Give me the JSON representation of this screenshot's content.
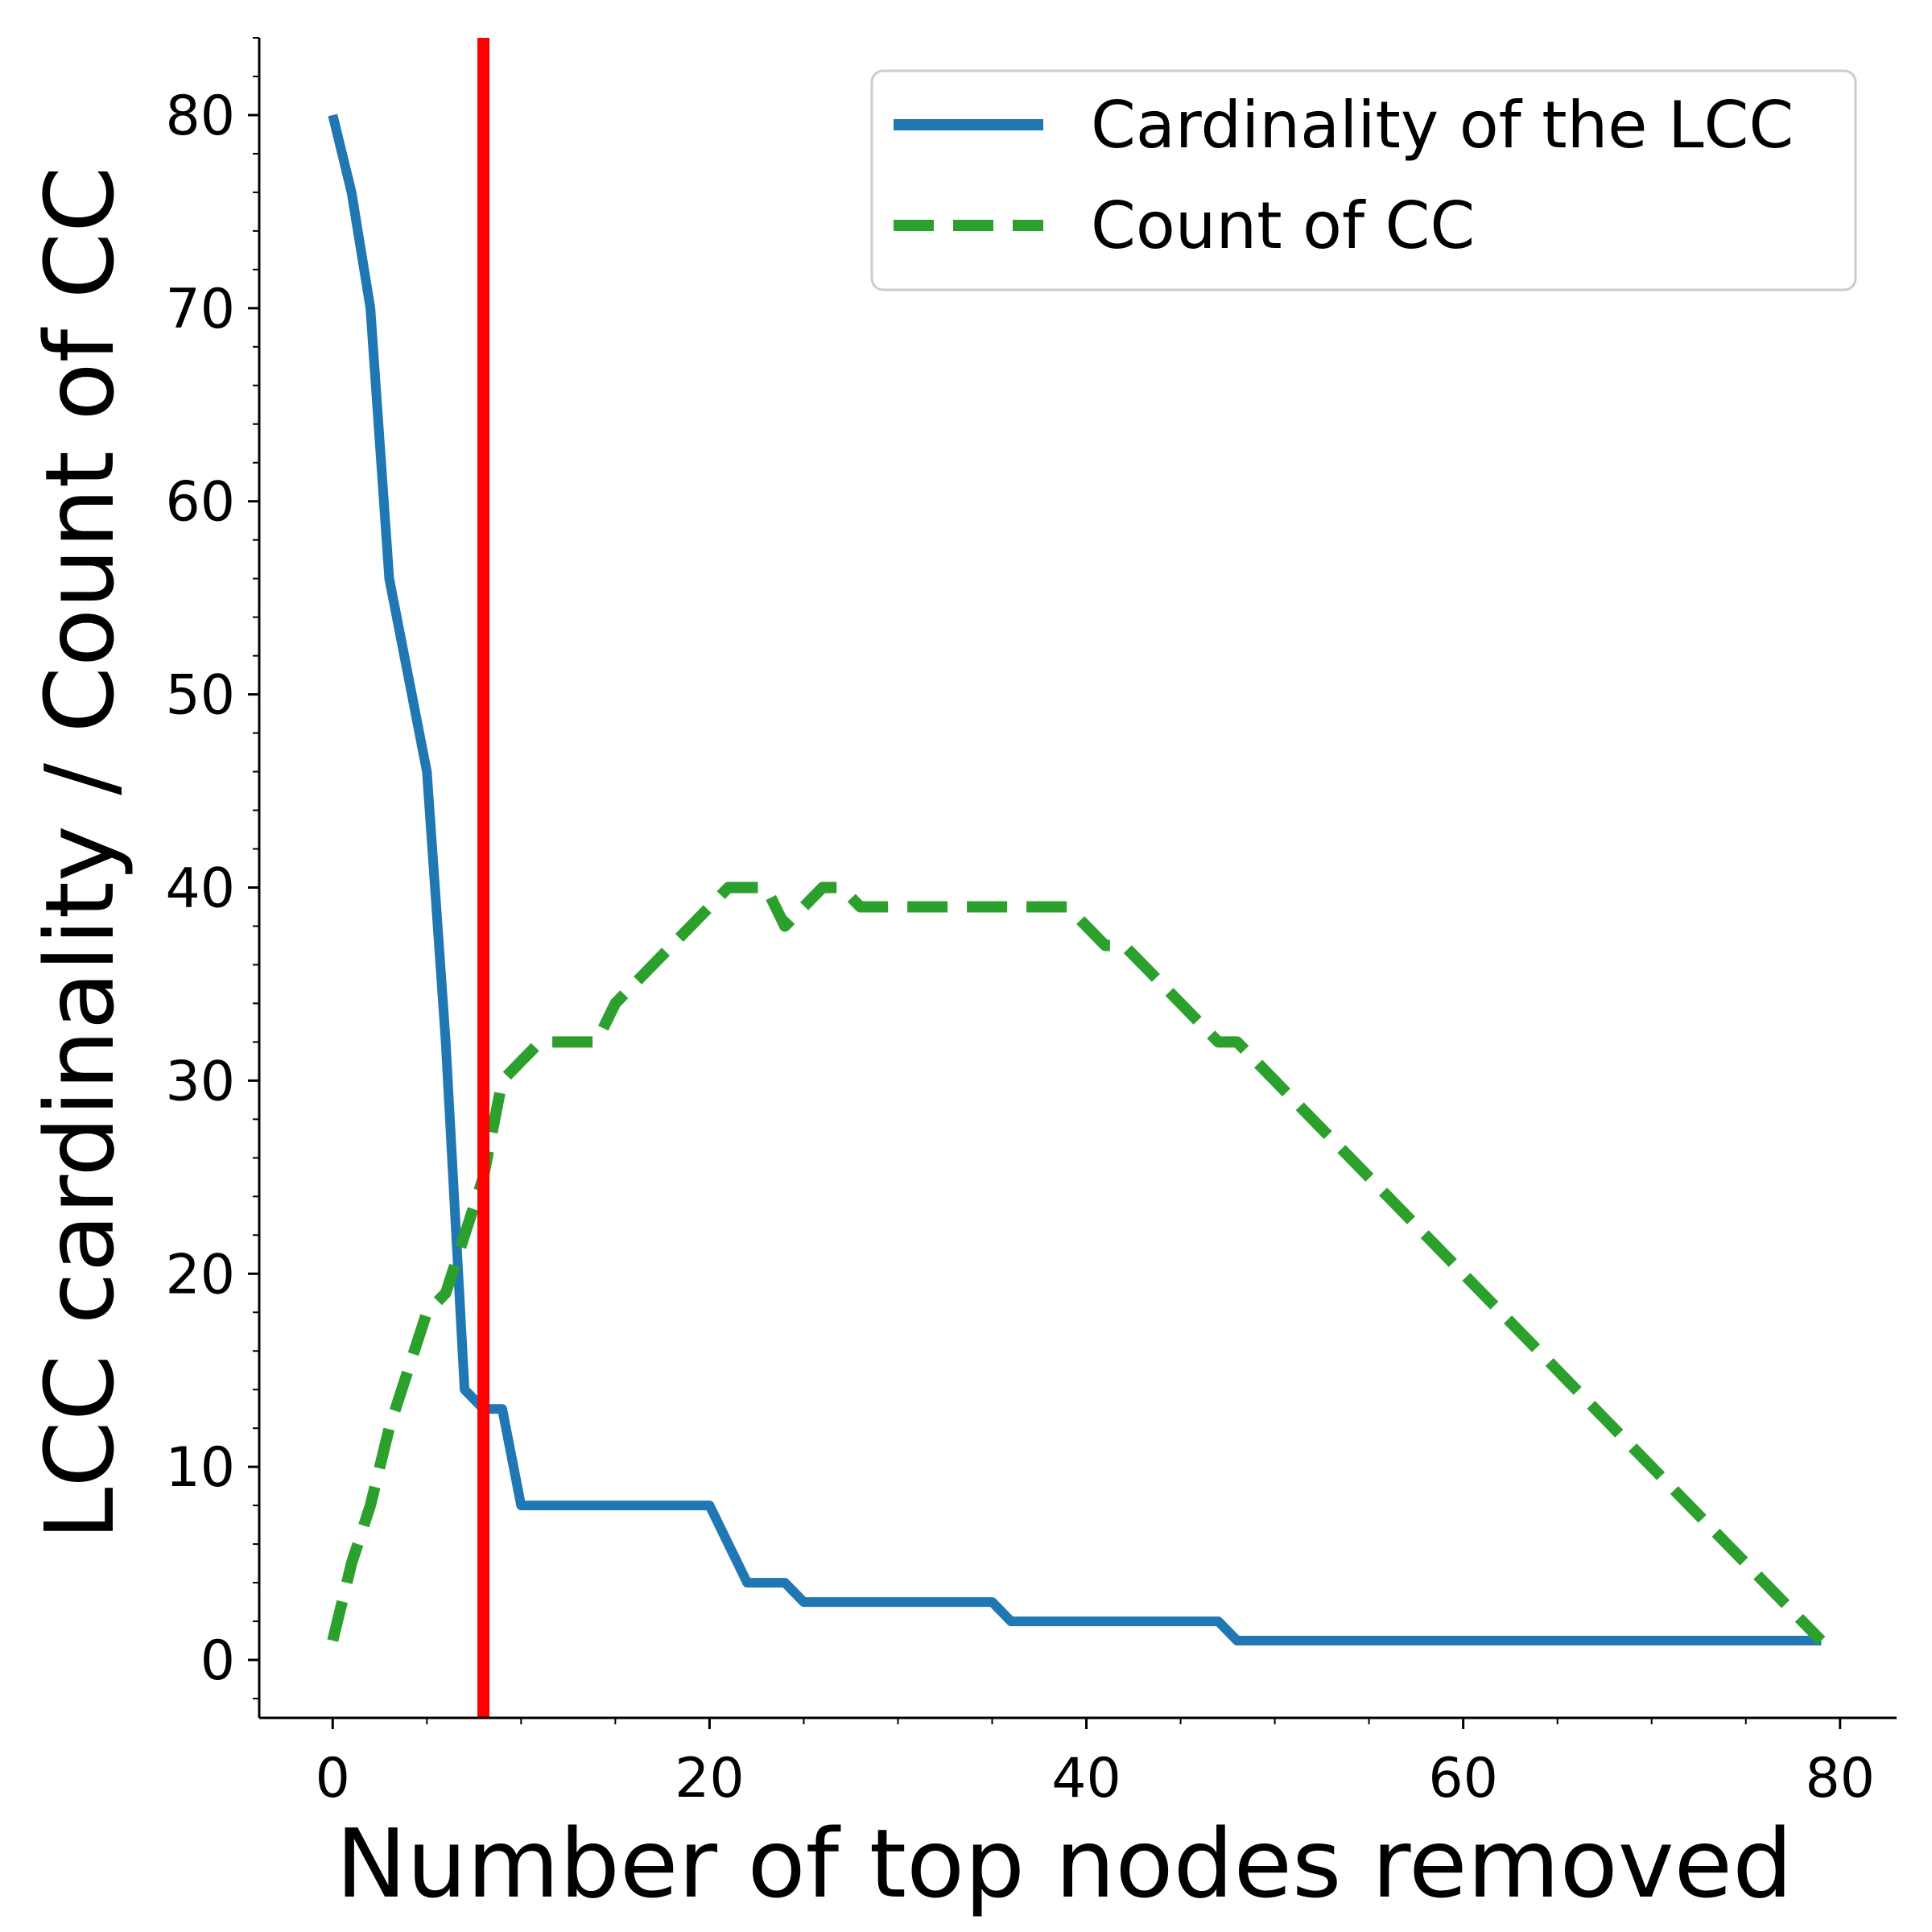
{
  "chart_data": {
    "type": "line",
    "title": "",
    "xlabel": "Number of top nodes removed",
    "ylabel": "LCC cardinality / Count of CC",
    "xlim": [
      -3.9,
      83.0
    ],
    "ylim": [
      -3.0,
      84.0
    ],
    "x_ticks": [
      "0",
      "20",
      "40",
      "60",
      "80"
    ],
    "y_ticks": [
      "0",
      "10",
      "20",
      "30",
      "40",
      "50",
      "60",
      "70",
      "80"
    ],
    "grid": false,
    "legend_position": "top-right",
    "series": [
      {
        "name": "Cardinality of the LCC",
        "color": "#1f77b4",
        "style": "solid",
        "x": [
          0,
          1,
          2,
          3,
          4,
          5,
          6,
          7,
          8,
          9,
          10,
          11,
          12,
          13,
          14,
          15,
          16,
          17,
          18,
          19,
          20,
          21,
          22,
          23,
          24,
          25,
          26,
          27,
          28,
          29,
          30,
          31,
          32,
          33,
          34,
          35,
          36,
          37,
          38,
          39,
          40,
          41,
          42,
          43,
          44,
          45,
          46,
          47,
          48,
          49,
          50,
          55,
          60,
          65,
          70,
          75,
          79
        ],
        "y": [
          80,
          76,
          70,
          56,
          51,
          46,
          32,
          14,
          13,
          13,
          8,
          8,
          8,
          8,
          8,
          8,
          8,
          8,
          8,
          8,
          8,
          6,
          4,
          4,
          4,
          3,
          3,
          3,
          3,
          3,
          3,
          3,
          3,
          3,
          3,
          3,
          2,
          2,
          2,
          2,
          2,
          2,
          2,
          2,
          2,
          2,
          2,
          2,
          1,
          1,
          1,
          1,
          1,
          1,
          1,
          1,
          1
        ]
      },
      {
        "name": "Count of CC",
        "color": "#2ca02c",
        "style": "dashed",
        "x": [
          0,
          1,
          2,
          3,
          4,
          5,
          6,
          7,
          8,
          9,
          10,
          11,
          12,
          13,
          14,
          15,
          16,
          17,
          18,
          19,
          20,
          21,
          22,
          23,
          24,
          25,
          26,
          27,
          28,
          29,
          30,
          31,
          32,
          33,
          34,
          35,
          36,
          37,
          38,
          39,
          40,
          41,
          42,
          43,
          44,
          45,
          46,
          47,
          48,
          49,
          50,
          51,
          52,
          53,
          54,
          55,
          56,
          57,
          58,
          59,
          60,
          61,
          62,
          63,
          64,
          65,
          66,
          67,
          68,
          69,
          70,
          71,
          72,
          73,
          74,
          75,
          76,
          77,
          78,
          79
        ],
        "y": [
          1,
          5,
          8,
          12,
          15,
          18,
          19,
          22,
          25,
          30,
          31,
          32,
          32,
          32,
          32,
          34,
          35,
          36,
          37,
          38,
          39,
          40,
          40,
          40,
          38,
          39,
          40,
          40,
          39,
          39,
          39,
          39,
          39,
          39,
          39,
          39,
          39,
          39,
          39,
          39,
          38,
          37,
          37,
          36,
          35,
          34,
          33,
          32,
          32,
          31,
          30,
          29,
          28,
          27,
          26,
          25,
          24,
          23,
          22,
          21,
          20,
          19,
          18,
          17,
          16,
          15,
          14,
          13,
          12,
          11,
          10,
          9,
          8,
          7,
          6,
          5,
          4,
          3,
          2,
          1
        ]
      }
    ],
    "vline": {
      "x": 8,
      "color": "#ff0000"
    }
  }
}
